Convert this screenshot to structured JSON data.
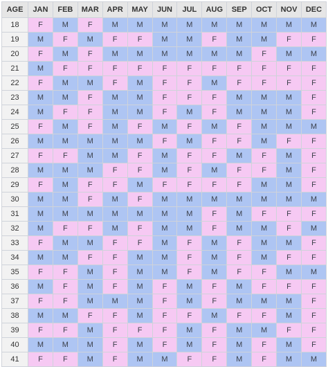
{
  "colors": {
    "F": "#f6c9f3",
    "M": "#aec5f3",
    "header": "#e6e6e6",
    "grid": "#cfd3da"
  },
  "headers": [
    "AGE",
    "JAN",
    "FEB",
    "MAR",
    "APR",
    "MAY",
    "JUN",
    "JUL",
    "AUG",
    "SEP",
    "OCT",
    "NOV",
    "DEC"
  ],
  "rows": [
    {
      "age": "18",
      "cells": [
        "F",
        "M",
        "F",
        "M",
        "M",
        "M",
        "M",
        "M",
        "M",
        "M",
        "M",
        "M"
      ]
    },
    {
      "age": "19",
      "cells": [
        "M",
        "F",
        "M",
        "F",
        "F",
        "M",
        "M",
        "F",
        "M",
        "M",
        "F",
        "F"
      ]
    },
    {
      "age": "20",
      "cells": [
        "F",
        "M",
        "F",
        "M",
        "M",
        "M",
        "M",
        "M",
        "M",
        "F",
        "M",
        "M"
      ]
    },
    {
      "age": "21",
      "cells": [
        "M",
        "F",
        "F",
        "F",
        "F",
        "F",
        "F",
        "F",
        "F",
        "F",
        "F",
        "F"
      ]
    },
    {
      "age": "22",
      "cells": [
        "F",
        "M",
        "M",
        "F",
        "M",
        "F",
        "F",
        "M",
        "F",
        "F",
        "F",
        "F"
      ]
    },
    {
      "age": "23",
      "cells": [
        "M",
        "M",
        "F",
        "M",
        "M",
        "F",
        "F",
        "F",
        "M",
        "M",
        "M",
        "F"
      ]
    },
    {
      "age": "24",
      "cells": [
        "M",
        "F",
        "F",
        "M",
        "M",
        "F",
        "M",
        "F",
        "M",
        "M",
        "M",
        "F"
      ]
    },
    {
      "age": "25",
      "cells": [
        "F",
        "M",
        "F",
        "M",
        "F",
        "M",
        "F",
        "M",
        "F",
        "M",
        "M",
        "M"
      ]
    },
    {
      "age": "26",
      "cells": [
        "M",
        "M",
        "M",
        "M",
        "M",
        "F",
        "M",
        "F",
        "F",
        "M",
        "F",
        "F"
      ]
    },
    {
      "age": "27",
      "cells": [
        "F",
        "F",
        "M",
        "M",
        "F",
        "M",
        "F",
        "F",
        "M",
        "F",
        "M",
        "F"
      ]
    },
    {
      "age": "28",
      "cells": [
        "M",
        "M",
        "M",
        "F",
        "F",
        "M",
        "F",
        "M",
        "F",
        "F",
        "M",
        "F"
      ]
    },
    {
      "age": "29",
      "cells": [
        "F",
        "M",
        "F",
        "F",
        "M",
        "F",
        "F",
        "F",
        "F",
        "M",
        "M",
        "F"
      ]
    },
    {
      "age": "30",
      "cells": [
        "M",
        "M",
        "F",
        "M",
        "F",
        "M",
        "M",
        "M",
        "M",
        "M",
        "M",
        "M"
      ]
    },
    {
      "age": "31",
      "cells": [
        "M",
        "M",
        "M",
        "M",
        "M",
        "M",
        "M",
        "F",
        "M",
        "F",
        "F",
        "F"
      ]
    },
    {
      "age": "32",
      "cells": [
        "M",
        "F",
        "F",
        "M",
        "F",
        "M",
        "M",
        "F",
        "M",
        "M",
        "F",
        "M"
      ]
    },
    {
      "age": "33",
      "cells": [
        "F",
        "M",
        "M",
        "F",
        "F",
        "M",
        "F",
        "M",
        "F",
        "M",
        "M",
        "F"
      ]
    },
    {
      "age": "34",
      "cells": [
        "M",
        "M",
        "F",
        "F",
        "M",
        "M",
        "F",
        "M",
        "F",
        "M",
        "F",
        "F"
      ]
    },
    {
      "age": "35",
      "cells": [
        "F",
        "F",
        "M",
        "F",
        "M",
        "M",
        "F",
        "M",
        "F",
        "F",
        "M",
        "M"
      ]
    },
    {
      "age": "36",
      "cells": [
        "M",
        "F",
        "M",
        "F",
        "M",
        "F",
        "M",
        "F",
        "M",
        "F",
        "F",
        "F"
      ]
    },
    {
      "age": "37",
      "cells": [
        "F",
        "F",
        "M",
        "M",
        "M",
        "F",
        "M",
        "F",
        "M",
        "M",
        "M",
        "F"
      ]
    },
    {
      "age": "38",
      "cells": [
        "M",
        "M",
        "F",
        "F",
        "M",
        "F",
        "F",
        "M",
        "F",
        "F",
        "M",
        "F"
      ]
    },
    {
      "age": "39",
      "cells": [
        "F",
        "F",
        "M",
        "F",
        "F",
        "F",
        "M",
        "F",
        "M",
        "M",
        "F",
        "F"
      ]
    },
    {
      "age": "40",
      "cells": [
        "M",
        "M",
        "M",
        "F",
        "M",
        "F",
        "M",
        "F",
        "M",
        "F",
        "M",
        "F"
      ]
    },
    {
      "age": "41",
      "cells": [
        "F",
        "F",
        "M",
        "F",
        "M",
        "M",
        "F",
        "F",
        "M",
        "F",
        "M",
        "M"
      ]
    }
  ]
}
